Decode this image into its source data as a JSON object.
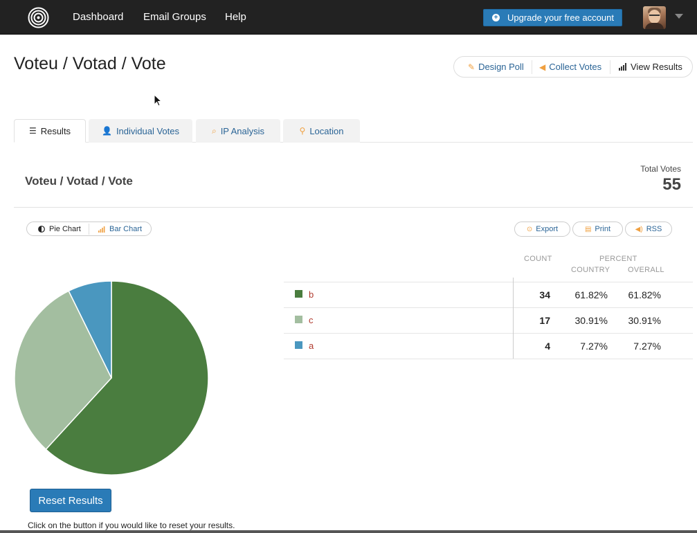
{
  "nav": {
    "items": [
      "Dashboard",
      "Email Groups",
      "Help"
    ],
    "upgrade_label": "Upgrade your free account"
  },
  "page": {
    "title": "Voteu / Votad / Vote",
    "actions": [
      "Design Poll",
      "Collect Votes",
      "View Results"
    ]
  },
  "tabs": [
    {
      "label": "Results",
      "icon": "list-icon",
      "active": true
    },
    {
      "label": "Individual Votes",
      "icon": "user-icon",
      "active": false
    },
    {
      "label": "IP Analysis",
      "icon": "search-icon",
      "active": false
    },
    {
      "label": "Location",
      "icon": "map-pin-icon",
      "active": false
    }
  ],
  "results": {
    "poll_title": "Voteu / Votad / Vote",
    "total_label": "Total Votes",
    "total_value": "55",
    "chart_toggle": [
      "Pie Chart",
      "Bar Chart"
    ],
    "tools": [
      "Export",
      "Print",
      "RSS"
    ],
    "headers": {
      "count": "COUNT",
      "percent": "PERCENT",
      "country": "COUNTRY",
      "overall": "OVERALL"
    },
    "rows": [
      {
        "label": "b",
        "count": "34",
        "country": "61.82%",
        "overall": "61.82%",
        "color": "#4a7d3f"
      },
      {
        "label": "c",
        "count": "17",
        "country": "30.91%",
        "overall": "30.91%",
        "color": "#a3bea0"
      },
      {
        "label": "a",
        "count": "4",
        "country": "7.27%",
        "overall": "7.27%",
        "color": "#4a97bf"
      }
    ]
  },
  "chart_data": {
    "type": "pie",
    "categories": [
      "b",
      "c",
      "a"
    ],
    "values": [
      34,
      17,
      4
    ],
    "colors": [
      "#4a7d3f",
      "#a3bea0",
      "#4a97bf"
    ]
  },
  "reset": {
    "button_label": "Reset Results",
    "help_text": "Click on the button if you would like to reset your results."
  }
}
